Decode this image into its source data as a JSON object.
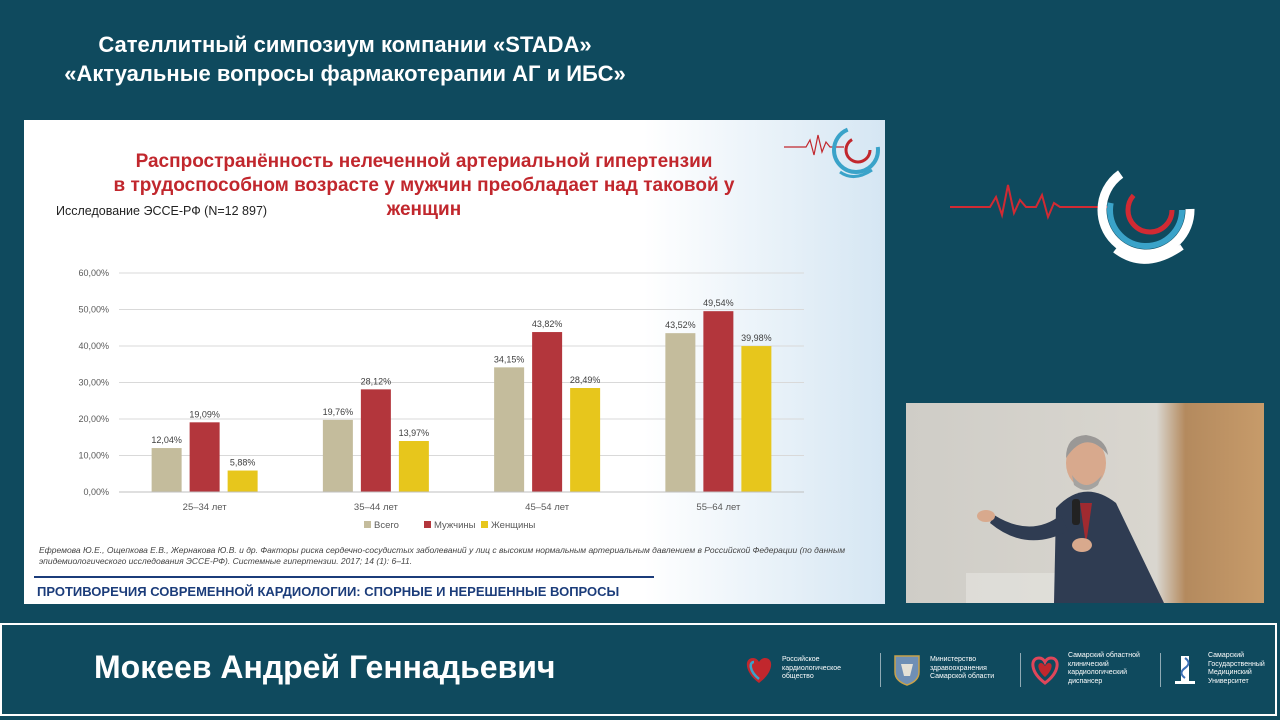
{
  "header": {
    "line1": "Сателлитный симпозиум компании «STADA»",
    "line2": "«Актуальные вопросы фармакотерапии АГ и ИБС»"
  },
  "slide": {
    "title_line1": "Распространённость нелеченной артериальной гипертензии",
    "title_line2": "в трудоспособном возрасте у мужчин преобладает над таковой у",
    "title_line3": "женщин",
    "study": "Исследование ЭССЕ-РФ (N=12 897)",
    "reference": "Ефремова Ю.Е., Ощепкова Е.В., Жернакова Ю.В. и др. Факторы риска сердечно-сосудистых заболеваний у лиц с высоким нормальным артериальным давлением в Российской Федерации (по данным эпидемиологического исследования ЭССЕ-РФ). Системные гипертензии. 2017; 14 (1): 6–11.",
    "footer": "ПРОТИВОРЕЧИЯ СОВРЕМЕННОЙ КАРДИОЛОГИИ: СПОРНЫЕ И НЕРЕШЕННЫЕ ВОПРОСЫ"
  },
  "chart_data": {
    "type": "bar",
    "categories": [
      "25–34 лет",
      "35–44 лет",
      "45–54 лет",
      "55–64 лет"
    ],
    "series": [
      {
        "name": "Всего",
        "color": "#c4bc9c",
        "values": [
          12.04,
          19.76,
          34.15,
          43.52
        ],
        "labels": [
          "12,04%",
          "19,76%",
          "34,15%",
          "43,52%"
        ]
      },
      {
        "name": "Мужчины",
        "color": "#b3363c",
        "values": [
          19.09,
          28.12,
          43.82,
          49.54
        ],
        "labels": [
          "19,09%",
          "28,12%",
          "43,82%",
          "49,54%"
        ]
      },
      {
        "name": "Женщины",
        "color": "#e7c61c",
        "values": [
          5.88,
          13.97,
          28.49,
          39.98
        ],
        "labels": [
          "5,88%",
          "13,97%",
          "28,49%",
          "39,98%"
        ]
      }
    ],
    "yticks": [
      "0,00%",
      "10,00%",
      "20,00%",
      "30,00%",
      "40,00%",
      "50,00%",
      "60,00%"
    ],
    "ylim": [
      0,
      60
    ],
    "grid": true,
    "legend": "bottom"
  },
  "lower_third": {
    "speaker": "Мокеев Андрей Геннадьевич",
    "orgs": [
      {
        "name": "Российское кардиологическое общество"
      },
      {
        "name": "Министерство здравоохранения Самарской области"
      },
      {
        "name": "Самарский областной клинический кардиологический диспансер"
      },
      {
        "name": "Самарский Государственный Медицинский Университет"
      }
    ]
  },
  "colors": {
    "background": "#0f4a5e",
    "accent_red": "#c1272d",
    "navy": "#1b3c7a"
  }
}
